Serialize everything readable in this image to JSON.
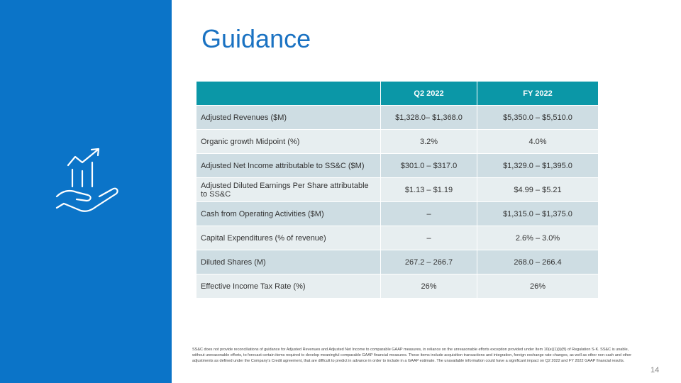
{
  "header": {
    "title": "Guidance"
  },
  "table": {
    "columns": [
      "Q2 2022",
      "FY 2022"
    ],
    "rows": [
      [
        "Adjusted Revenues ($M)",
        "$1,328.0– $1,368.0",
        "$5,350.0 – $5,510.0"
      ],
      [
        "Organic growth Midpoint (%)",
        "3.2%",
        "4.0%"
      ],
      [
        "Adjusted Net Income attributable to SS&C ($M)",
        "$301.0 – $317.0",
        "$1,329.0 – $1,395.0"
      ],
      [
        "Adjusted Diluted Earnings Per Share attributable to SS&C",
        "$1.13 – $1.19",
        "$4.99 – $5.21"
      ],
      [
        "Cash from Operating Activities ($M)",
        "–",
        "$1,315.0 – $1,375.0"
      ],
      [
        "Capital Expenditures (% of revenue)",
        "–",
        "2.6% – 3.0%"
      ],
      [
        "Diluted Shares (M)",
        "267.2 – 266.7",
        "268.0 – 266.4"
      ],
      [
        "Effective Income Tax Rate (%)",
        "26%",
        "26%"
      ]
    ]
  },
  "footnote": "SS&C does not provide reconciliations of guidance for Adjusted Revenues and Adjusted Net Income to comparable GAAP measures, in reliance on the unreasonable efforts exception provided under Item 10(e)(1)(i)(B) of Regulation S-K.  SS&C is unable, without unreasonable efforts, to forecast certain items required to develop meaningful comparable GAAP financial measures.  These items include acquisition transactions and integration, foreign exchange rate changes, as well as other non-cash and other adjustments as defined under the Company's Credit agreement, that are difficult to predict in advance in order to include in a GAAP estimate.  The unavailable information could have a significant impact on Q2 2022 and FY 2022 GAAP financial results.",
  "page_number": "14"
}
